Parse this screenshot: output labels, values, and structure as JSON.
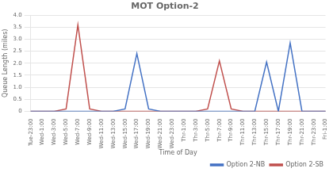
{
  "chart_data": {
    "type": "line",
    "title": "MOT Option-2",
    "x_label": "Time of Day",
    "y_label": "Queue Length (miles)",
    "categories": [
      "Tue-23:00",
      "Wed-1:00",
      "Wed-3:00",
      "Wed-5:00",
      "Wed-7:00",
      "Wed-9:00",
      "Wed-11:00",
      "Wed-13:00",
      "Wed-15:00",
      "Wed-17:00",
      "Wed-19:00",
      "Wed-21:00",
      "Wed-23:00",
      "Thr-1:00",
      "Thr-3:00",
      "Thr-5:00",
      "Thr-7:00",
      "Thr-9:00",
      "Thr-11:00",
      "Thr-13:00",
      "Thr-15:00",
      "Thr-17:00",
      "Thr-19:00",
      "Thr-21:00",
      "Thr-23:00",
      "Fri-1:00"
    ],
    "series": [
      {
        "name": "Option 2-NB",
        "color": "#4472C4",
        "values": [
          0,
          0,
          0,
          0,
          0,
          0,
          0,
          0,
          0.1,
          2.4,
          0.1,
          0,
          0,
          0,
          0,
          0,
          0,
          0,
          0,
          0,
          2.05,
          0,
          2.85,
          0,
          0,
          0
        ]
      },
      {
        "name": "Option 2-SB",
        "color": "#C0504D",
        "values": [
          0,
          0,
          0,
          0.1,
          3.6,
          0.1,
          0,
          0,
          0,
          0,
          0,
          0,
          0,
          0,
          0,
          0.1,
          2.1,
          0.1,
          0,
          0,
          0,
          0,
          0,
          0,
          0,
          0
        ]
      }
    ],
    "ylim": [
      0,
      4
    ],
    "yticks": [
      0,
      0.5,
      {
        "value": 1,
        "label": "1.0"
      },
      1.5,
      {
        "value": 2,
        "label": "2.0"
      },
      2.5,
      {
        "value": 3,
        "label": "3.0"
      },
      3.5,
      {
        "value": 4,
        "label": "4.0"
      }
    ],
    "grid": true,
    "legend": "lower right"
  }
}
